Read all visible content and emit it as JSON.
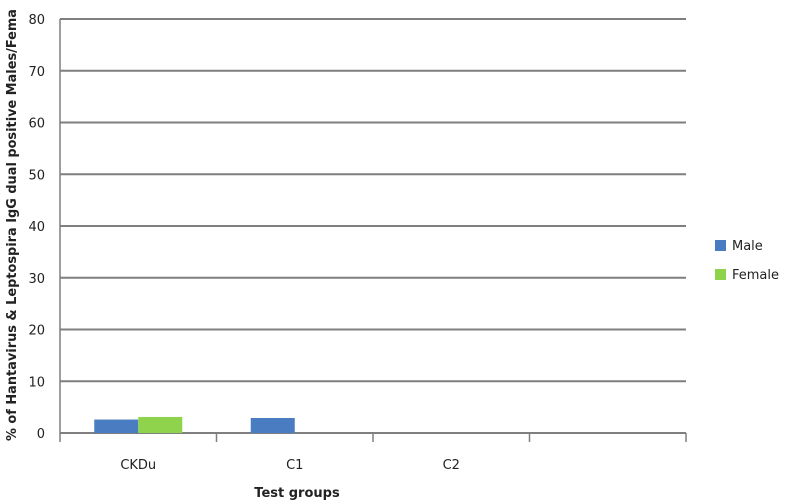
{
  "chart_data": {
    "type": "bar",
    "title": "",
    "xlabel": "Test groups",
    "ylabel": "% of Hantavirus & Leptospira IgG  dual positive Males/Fema",
    "ylim": [
      0,
      80
    ],
    "yticks": [
      0,
      10,
      20,
      30,
      40,
      50,
      60,
      70,
      80
    ],
    "categories": [
      "CKDu",
      "C1",
      "C2",
      ""
    ],
    "series": [
      {
        "name": "Male",
        "color": "#4a7cc1",
        "values": [
          2.6,
          2.9,
          0,
          0
        ]
      },
      {
        "name": "Female",
        "color": "#8ed34b",
        "values": [
          3.1,
          0,
          0,
          0
        ]
      }
    ],
    "grid": true,
    "legend": "right"
  }
}
